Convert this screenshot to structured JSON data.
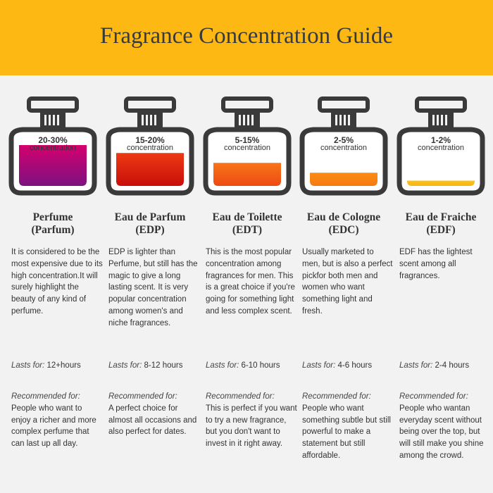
{
  "title": "Fragrance Concentration Guide",
  "colors": {
    "header": "#fdb813",
    "bottle": "#3a3a3a"
  },
  "lasts_label": "Lasts for:",
  "recommended_label": "Recommended for:",
  "concentration_label": "concentration",
  "columns": [
    {
      "percent": "20-30%",
      "fill_level": 0.62,
      "gradient": [
        "#d4006e",
        "#7c1280"
      ],
      "name": "Perfume",
      "abbr": "(Parfum)",
      "description": "It is considered to be the most expensive due to its high concentration.It will surely highlight the beauty of any kind of perfume.",
      "lasts": "12+hours",
      "recommended": "People who want to enjoy a richer and more complex perfume that can last up all day."
    },
    {
      "percent": "15-20%",
      "fill_level": 0.5,
      "gradient": [
        "#ec3a14",
        "#c80e0a"
      ],
      "name": "Eau de Parfum",
      "abbr": "(EDP)",
      "description": "EDP is lighter than Perfume, but still has the magic to give a long lasting scent. It is very popular concentration among women's and niche fragrances.",
      "lasts": "8-12 hours",
      "recommended": "A perfect choice for almost all occasions and also perfect for dates."
    },
    {
      "percent": "5-15%",
      "fill_level": 0.35,
      "gradient": [
        "#f7751a",
        "#ee4a12"
      ],
      "name": "Eau de Toilette",
      "abbr": "(EDT)",
      "description": "This is the most popular concentration among fragrances for men. This is a great choice if you're going for something light and less complex scent.",
      "lasts": "6-10 hours",
      "recommended": "This is perfect if you want to try a new fragrance, but you don't want to invest in it right away."
    },
    {
      "percent": "2-5%",
      "fill_level": 0.2,
      "gradient": [
        "#fb8c14",
        "#f67a10"
      ],
      "name": "Eau de Cologne",
      "abbr": "(EDC)",
      "description": "Usually marketed to men, but is also a perfect pickfor both men and women who want something light and fresh.",
      "lasts": "4-6 hours",
      "recommended": "People who want something subtle but still powerful to make a statement but still affordable."
    },
    {
      "percent": "1-2%",
      "fill_level": 0.08,
      "gradient": [
        "#fbc21a",
        "#f8b414"
      ],
      "name": "Eau de Fraiche",
      "abbr": "(EDF)",
      "description": "EDF has the lightest scent among all fragrances.",
      "lasts": "2-4 hours",
      "recommended": "People who wantan everyday scent without being over the top, but will still make you shine among the crowd."
    }
  ]
}
